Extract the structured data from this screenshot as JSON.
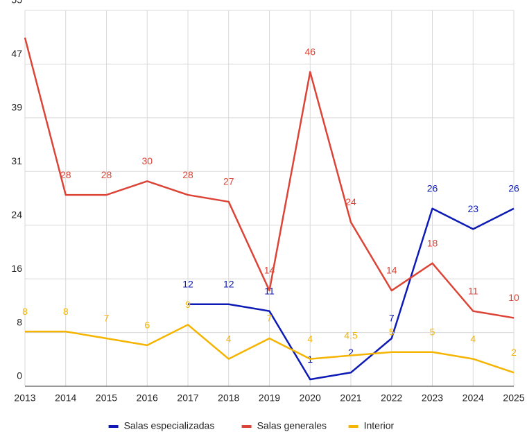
{
  "chart_data": {
    "type": "line",
    "x": [
      2013,
      2014,
      2015,
      2016,
      2017,
      2018,
      2019,
      2020,
      2021,
      2022,
      2023,
      2024,
      2025
    ],
    "xlim": [
      2013,
      2025
    ],
    "xticks": [
      2013,
      2014,
      2015,
      2016,
      2017,
      2018,
      2019,
      2020,
      2021,
      2022,
      2023,
      2024,
      2025
    ],
    "ylim": [
      0,
      55
    ],
    "yticks": [
      0,
      {
        "value": 7.857,
        "label": "8"
      },
      {
        "value": 15.714,
        "label": "16"
      },
      {
        "value": 23.571,
        "label": "24"
      },
      {
        "value": 31.429,
        "label": "31"
      },
      {
        "value": 39.286,
        "label": "39"
      },
      {
        "value": 47.143,
        "label": "47"
      },
      55
    ],
    "grid": true,
    "legend": "bottom",
    "series": [
      {
        "name": "Salas especializadas",
        "color": "#0d1ab5",
        "values": [
          null,
          null,
          null,
          null,
          12,
          12,
          11,
          1,
          2,
          7,
          26,
          23,
          26
        ],
        "value_labels": [
          null,
          null,
          null,
          null,
          "12",
          "12",
          "11",
          "1",
          "2",
          "7",
          "26",
          "23",
          "26"
        ]
      },
      {
        "name": "Salas generales",
        "color": "#db4437",
        "values": [
          51,
          28,
          28,
          30,
          28,
          27,
          14,
          46,
          24,
          14,
          18,
          11,
          10
        ],
        "value_labels": [
          null,
          "28",
          "28",
          "30",
          "28",
          "27",
          "14",
          "46",
          "24",
          "14",
          "18",
          "11",
          "10"
        ]
      },
      {
        "name": "Interior",
        "color": "#f4b400",
        "values": [
          8,
          8,
          7,
          6,
          9,
          4,
          7,
          4,
          4.5,
          5,
          5,
          4,
          2
        ],
        "value_labels": [
          "8",
          "8",
          "7",
          "6",
          "9",
          "4",
          "7",
          "4",
          "4.5",
          "5",
          "5",
          "4",
          "2"
        ]
      }
    ]
  }
}
